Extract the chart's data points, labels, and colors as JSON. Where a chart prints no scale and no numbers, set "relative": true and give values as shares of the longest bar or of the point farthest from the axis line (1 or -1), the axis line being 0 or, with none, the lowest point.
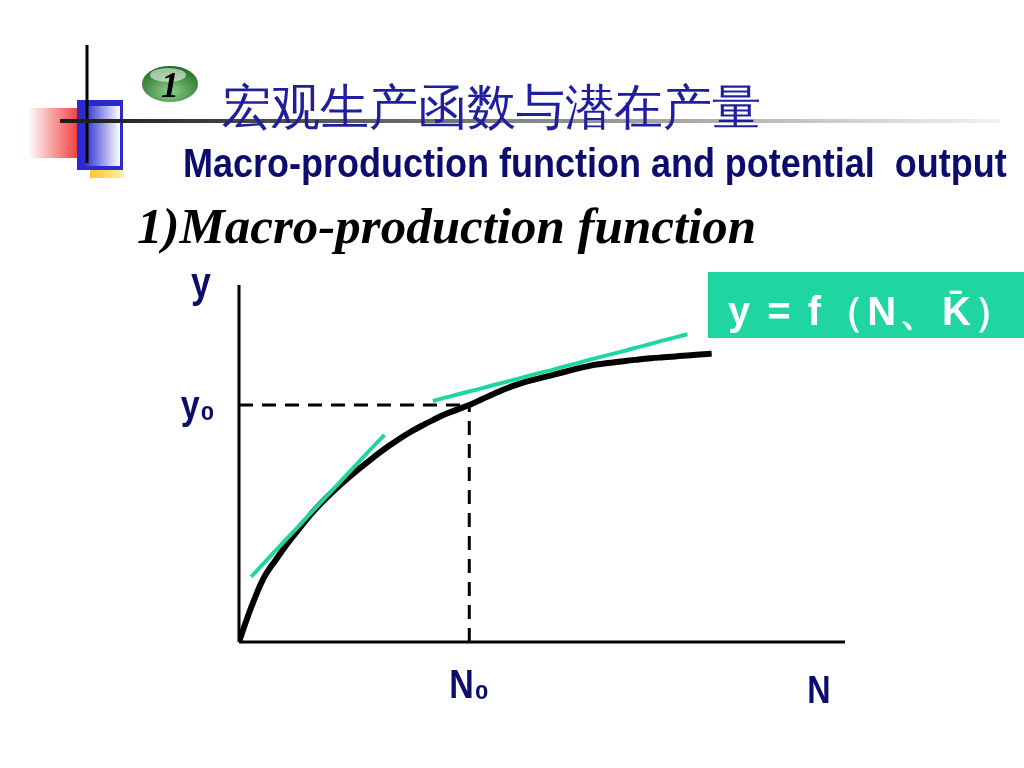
{
  "chart_data": {
    "type": "line",
    "title": "宏观生产函数与潜在产量",
    "subtitle": "Macro-production function and potential  output",
    "xlabel": "N",
    "ylabel": "y",
    "annotations": [
      "1",
      "1)Macro-production function",
      "N₀"
    ],
    "relative": true,
    "categories": [
      null,
      null,
      null,
      null,
      null,
      null,
      null,
      null,
      null,
      null,
      null,
      null,
      null,
      null,
      null,
      null,
      null,
      null,
      null,
      null,
      null,
      null,
      null,
      null,
      null,
      null,
      null,
      null,
      null,
      null,
      null,
      null,
      null,
      null,
      null,
      null,
      null,
      null,
      null,
      null,
      null,
      null,
      null,
      null,
      null,
      null,
      null,
      null,
      null,
      null,
      null
    ],
    "series": [
      {
        "name": "y = f（N、K̄）",
        "color": "#000000",
        "values": [
          0,
          0.112,
          0.205,
          0.265,
          0.32,
          0.37,
          0.418,
          0.46,
          0.498,
          0.533,
          0.566,
          0.597,
          0.627,
          0.654,
          0.679,
          0.701,
          0.721,
          0.74,
          0.755,
          0.77,
          0.788,
          0.806,
          0.823,
          0.837,
          0.849,
          0.859,
          0.869,
          0.879,
          0.889,
          0.898,
          0.904,
          0.909,
          0.914,
          0.918,
          0.922,
          0.925,
          0.928,
          0.931,
          0.934,
          0.937,
          null,
          null,
          null,
          null,
          null,
          null,
          null,
          null,
          null,
          null,
          null
        ]
      },
      {
        "color": "#1fd6a2",
        "values": [
          null,
          0.212,
          0.254,
          0.296,
          0.338,
          0.38,
          0.422,
          0.464,
          0.506,
          0.548,
          0.59,
          0.632,
          0.673,
          null,
          null,
          null,
          null,
          null,
          null,
          null,
          null,
          null,
          null,
          null,
          null,
          null,
          null,
          null,
          null,
          null,
          null,
          null,
          null,
          null,
          null,
          null,
          null,
          null,
          null,
          null,
          null,
          null,
          null,
          null,
          null,
          null,
          null,
          null,
          null,
          null,
          null
        ]
      },
      {
        "color": "#1fd6a2",
        "values": [
          null,
          null,
          null,
          null,
          null,
          null,
          null,
          null,
          null,
          null,
          null,
          null,
          null,
          null,
          null,
          null,
          0.783,
          0.794,
          0.804,
          0.814,
          0.824,
          0.835,
          0.845,
          0.855,
          0.866,
          0.876,
          0.886,
          0.897,
          0.907,
          0.918,
          0.928,
          0.938,
          0.948,
          0.959,
          0.969,
          0.98,
          0.99,
          1,
          null,
          null,
          null,
          null,
          null,
          null,
          null,
          null,
          null,
          null,
          null,
          null,
          null
        ]
      }
    ],
    "ref_lines": [
      {
        "axis": "y",
        "value": 0.77,
        "label": "y₀",
        "line_style": "dashed"
      }
    ]
  }
}
